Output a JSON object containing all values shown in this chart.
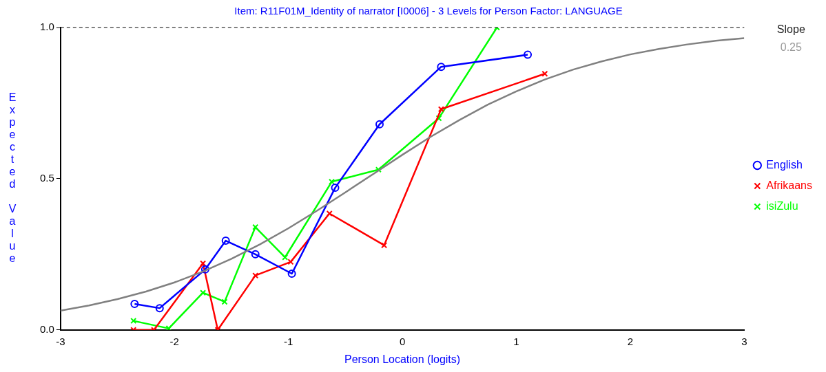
{
  "chart_data": {
    "type": "line",
    "title": "Item: R11F01M_Identity of narrator [I0006] - 3 Levels for Person Factor: LANGUAGE",
    "xlabel": "Person Location (logits)",
    "ylabel": "Expected Value",
    "annotations": [
      "Slope",
      "0.25"
    ],
    "xlim": [
      -3,
      3
    ],
    "xticks": [
      -3,
      -2,
      -1,
      0,
      1,
      2,
      3
    ],
    "ylim": [
      0,
      1
    ],
    "yticks": [
      {
        "value": 0,
        "label": "0.0"
      },
      {
        "value": 0.5,
        "label": "0.5"
      },
      {
        "value": 1,
        "label": "1.0"
      }
    ],
    "grid": false,
    "legend": "right",
    "line_style": "solid",
    "ref_lines": [
      {
        "axis": "y",
        "value": 1,
        "label": null,
        "color": "#000000",
        "line_style": "dashed"
      }
    ],
    "series": [
      {
        "color": "#808080",
        "marker": "none",
        "x": [
          -3,
          -2.75,
          -2.5,
          -2.25,
          -2,
          -1.75,
          -1.5,
          -1.25,
          -1,
          -0.75,
          -0.5,
          -0.25,
          0,
          0.25,
          0.5,
          0.75,
          1,
          1.25,
          1.5,
          1.75,
          2,
          2.25,
          2.5,
          2.75,
          3
        ],
        "values": [
          0.064,
          0.081,
          0.102,
          0.127,
          0.157,
          0.193,
          0.235,
          0.283,
          0.336,
          0.394,
          0.455,
          0.517,
          0.579,
          0.639,
          0.694,
          0.745,
          0.789,
          0.828,
          0.861,
          0.888,
          0.911,
          0.929,
          0.944,
          0.956,
          0.965
        ]
      },
      {
        "name": "English",
        "color": "#0000ff",
        "marker": "circle",
        "x": [
          -2.35,
          -2.13,
          -1.73,
          -1.55,
          -1.29,
          -0.97,
          -0.59,
          -0.2,
          0.34,
          1.1
        ],
        "values": [
          0.086,
          0.072,
          0.2,
          0.295,
          0.25,
          0.186,
          0.47,
          0.68,
          0.87,
          0.91
        ]
      },
      {
        "name": "Afrikaans",
        "color": "#ff0000",
        "marker": "cross",
        "x": [
          -2.36,
          -2.18,
          -1.75,
          -1.62,
          -1.29,
          -0.98,
          -0.64,
          -0.16,
          0.34,
          1.25
        ],
        "values": [
          0,
          0,
          0.22,
          0,
          0.18,
          0.225,
          0.385,
          0.28,
          0.73,
          0.847
        ]
      },
      {
        "name": "isiZulu",
        "color": "#00ff00",
        "marker": "cross",
        "x": [
          -2.36,
          -2.05,
          -1.75,
          -1.56,
          -1.29,
          -1.03,
          -0.62,
          -0.21,
          0.32,
          0.83
        ],
        "values": [
          0.03,
          0.005,
          0.123,
          0.093,
          0.34,
          0.24,
          0.49,
          0.53,
          0.7,
          1
        ]
      }
    ]
  }
}
